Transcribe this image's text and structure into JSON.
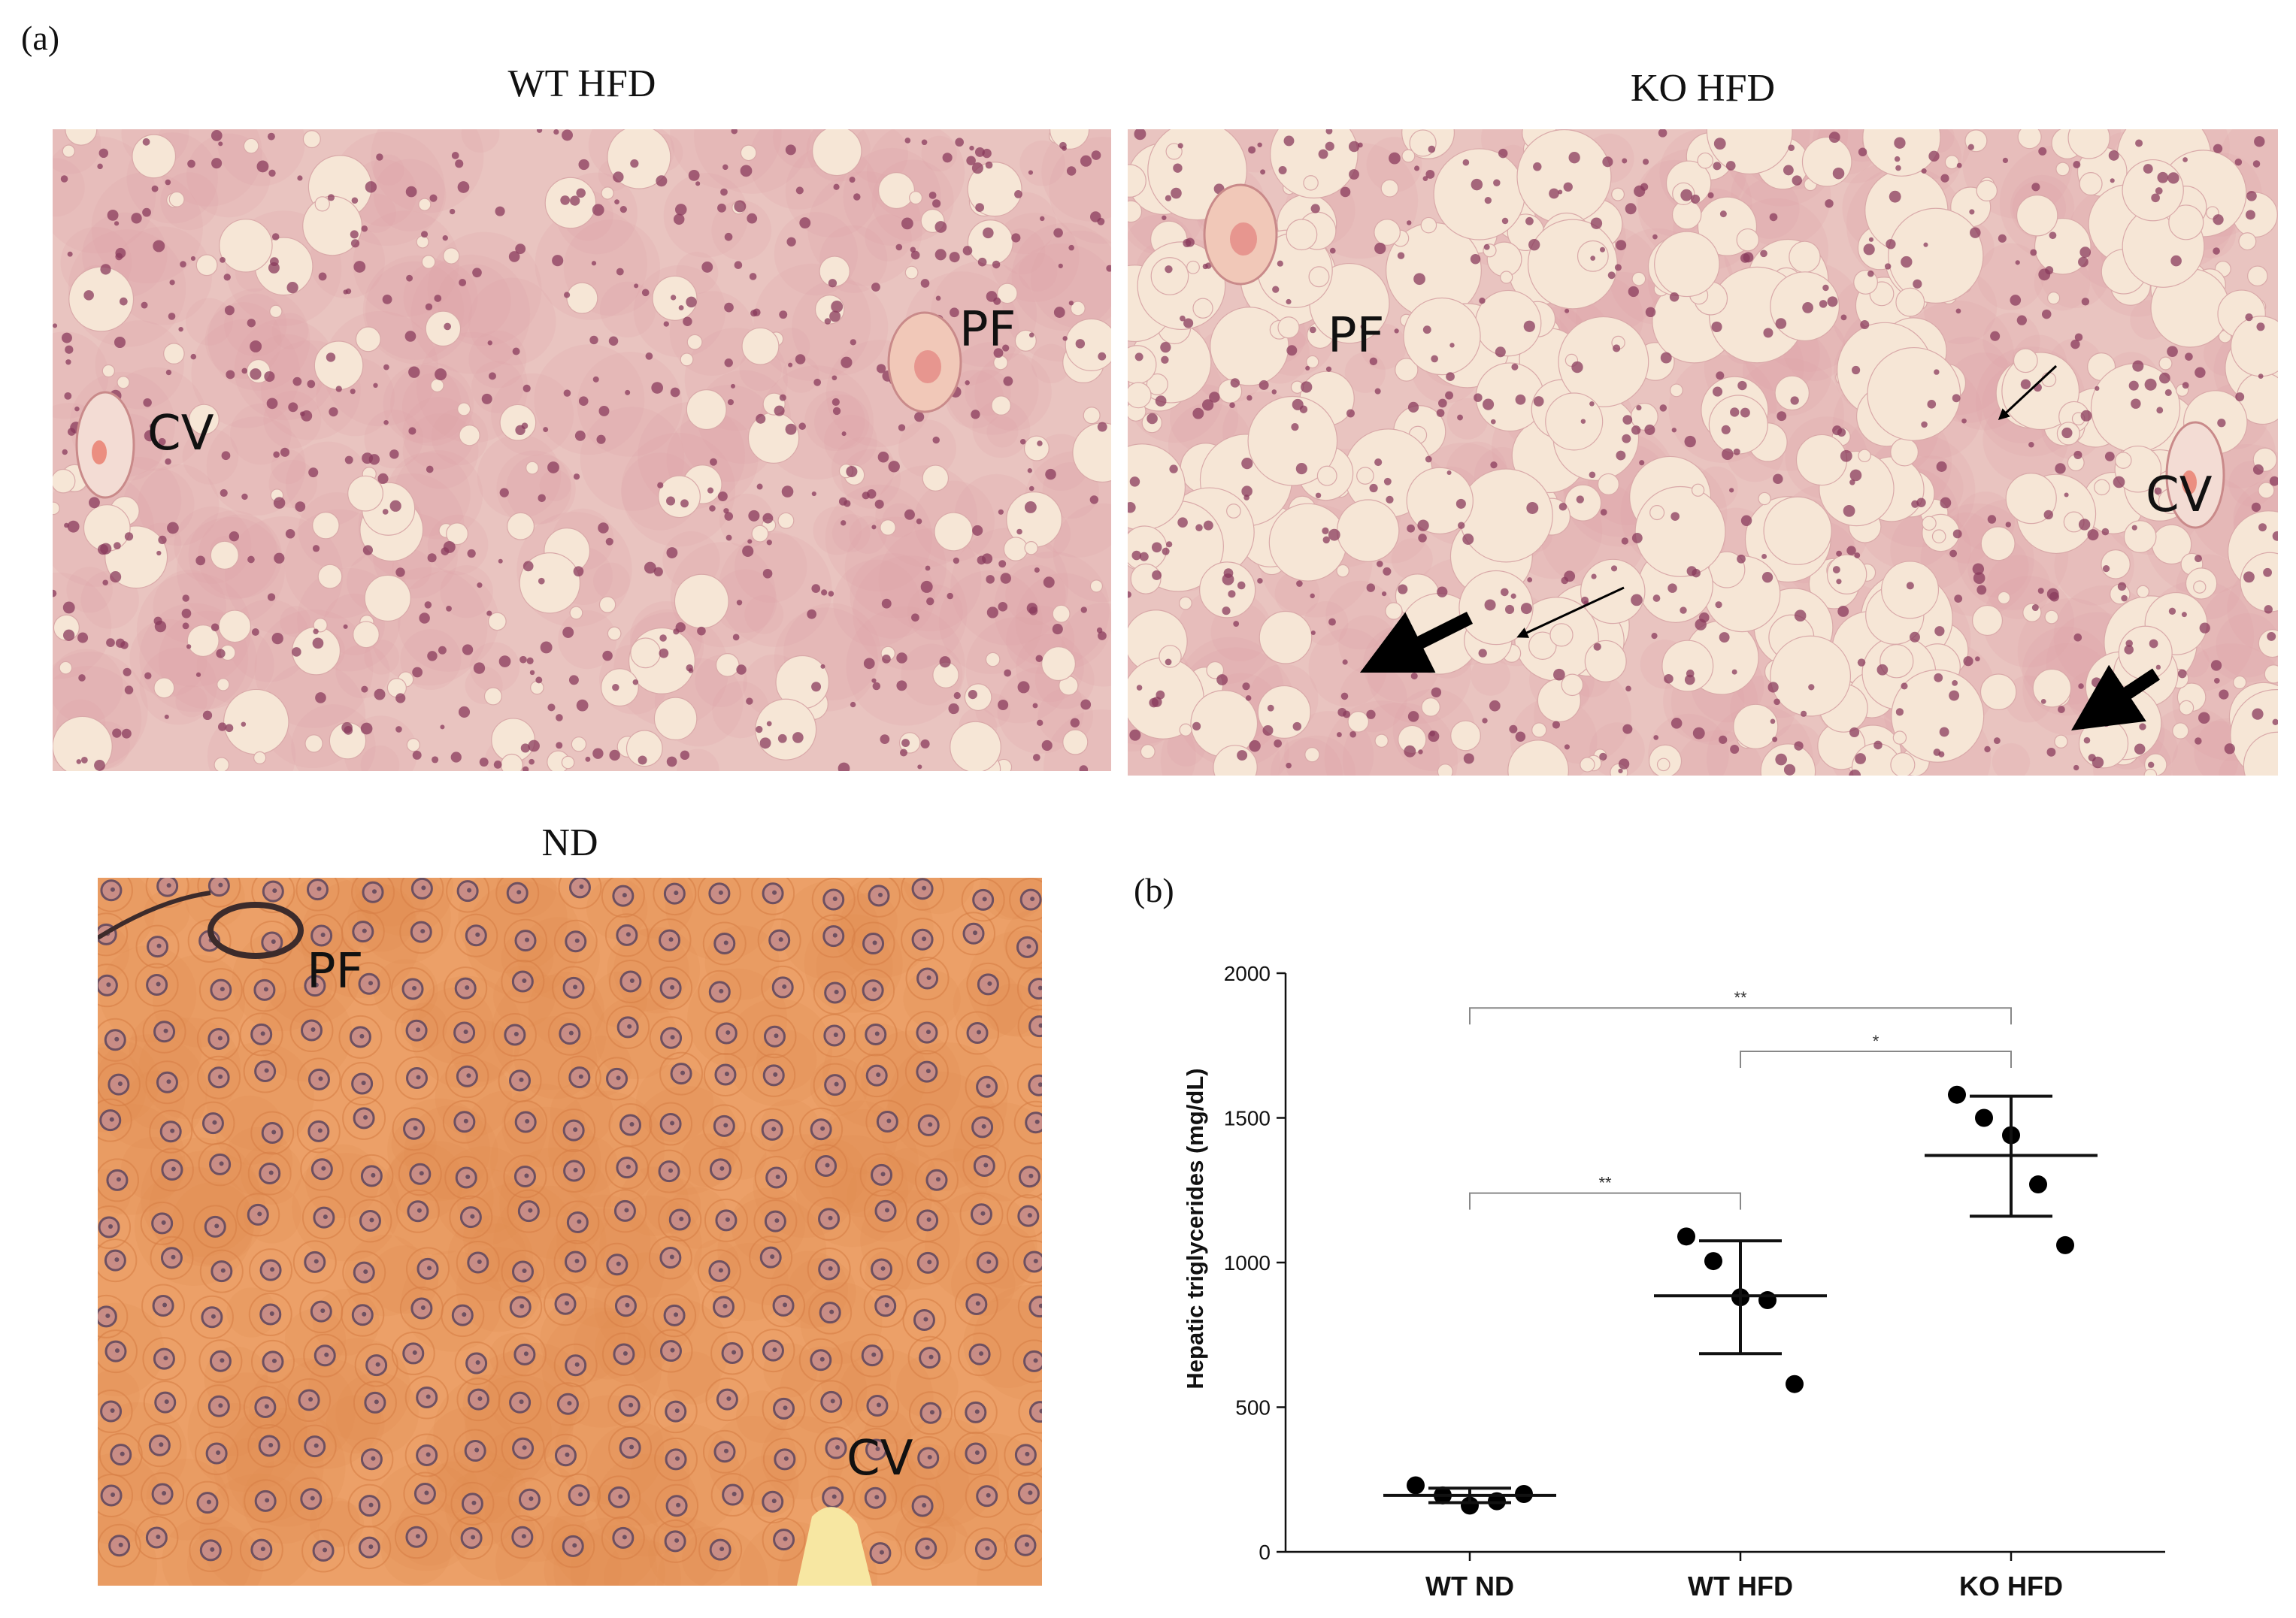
{
  "panel_a": {
    "label": "(a)",
    "images": [
      {
        "title": "WT HFD",
        "labels": [
          "CV",
          "PF"
        ]
      },
      {
        "title": "KO HFD",
        "labels": [
          "PF",
          "CV"
        ]
      },
      {
        "title": "ND",
        "labels": [
          "PF",
          "CV"
        ]
      }
    ]
  },
  "panel_b": {
    "label": "(b)"
  },
  "colors": {
    "hfd_stain_bg": "#e9c4c0",
    "hfd_nucleus": "#8a3b5c",
    "fat_vacuole": "#f6e6d6",
    "nd_stain_bg": "#eca068",
    "nd_nucleus": "#6e5060",
    "marker": "#000000"
  },
  "chart_data": {
    "type": "scatter",
    "ylabel": "Hepatic triglycerides (mg/dL)",
    "xlabel": "",
    "ylim": [
      0,
      2000
    ],
    "yticks": [
      0,
      500,
      1000,
      1500,
      2000
    ],
    "categories": [
      "WT ND",
      "WT HFD",
      "KO HFD"
    ],
    "series": [
      {
        "category": "WT ND",
        "points": [
          230,
          195,
          160,
          175,
          200
        ],
        "mean": 195,
        "sd_low": 170,
        "sd_high": 220
      },
      {
        "category": "WT HFD",
        "points": [
          1090,
          1005,
          880,
          870,
          580
        ],
        "mean": 885,
        "sd_low": 685,
        "sd_high": 1075
      },
      {
        "category": "KO HFD",
        "points": [
          1580,
          1500,
          1440,
          1270,
          1060
        ],
        "mean": 1370,
        "sd_low": 1160,
        "sd_high": 1575
      }
    ],
    "significance": [
      {
        "from": "WT ND",
        "to": "KO HFD",
        "label": "**",
        "y": 1880
      },
      {
        "from": "WT HFD",
        "to": "KO HFD",
        "label": "*",
        "y": 1730
      },
      {
        "from": "WT ND",
        "to": "WT HFD",
        "label": "**",
        "y": 1240
      }
    ]
  }
}
